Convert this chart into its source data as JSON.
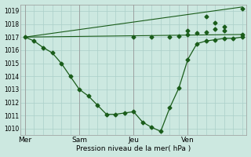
{
  "bg_color": "#cce8e0",
  "grid_color": "#aacfc8",
  "line_color": "#1a5c1a",
  "xlabel": "Pression niveau de la mer( hPa )",
  "ylim": [
    1009.5,
    1019.5
  ],
  "yticks": [
    1010,
    1011,
    1012,
    1013,
    1014,
    1015,
    1016,
    1017,
    1018,
    1019
  ],
  "xtick_labels": [
    "Mer",
    "Sam",
    "Jeu",
    "Ven"
  ],
  "xtick_positions": [
    0,
    24,
    48,
    72
  ],
  "vline_positions": [
    0,
    24,
    48,
    72
  ],
  "xlim": [
    -2,
    98
  ],
  "line1_x": [
    0,
    4,
    8,
    12,
    16,
    20,
    24,
    28,
    32,
    36,
    40,
    44,
    48,
    52,
    56,
    60,
    64,
    68,
    72,
    76,
    80,
    84,
    88,
    92,
    96
  ],
  "line1_y": [
    1017.0,
    1016.7,
    1016.2,
    1015.8,
    1015.0,
    1014.0,
    1013.0,
    1012.5,
    1011.8,
    1011.1,
    1011.1,
    1011.2,
    1011.3,
    1010.5,
    1010.1,
    1009.8,
    1011.6,
    1013.1,
    1015.3,
    1016.5,
    1016.7,
    1016.8,
    1016.9,
    1016.9,
    1017.0
  ],
  "line2_x": [
    0,
    96
  ],
  "line2_y": [
    1017.0,
    1017.2
  ],
  "line3_x": [
    0,
    96
  ],
  "line3_y": [
    1017.0,
    1019.3
  ],
  "markers_line2_x": [
    48,
    56,
    64,
    68,
    72,
    76,
    80,
    84,
    88,
    96
  ],
  "markers_line2_y": [
    1017.0,
    1017.0,
    1017.0,
    1017.1,
    1017.2,
    1017.3,
    1017.4,
    1017.6,
    1017.8,
    1017.2
  ],
  "markers_line3_x": [
    72,
    80,
    84,
    88,
    96
  ],
  "markers_line3_y": [
    1017.5,
    1018.6,
    1018.1,
    1017.5,
    1019.2
  ]
}
